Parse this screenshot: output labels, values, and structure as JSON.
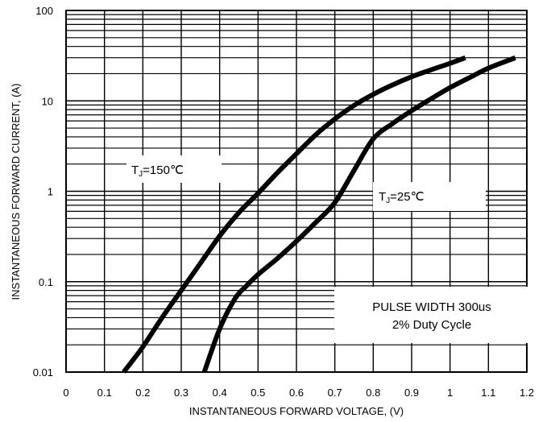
{
  "chart_data": {
    "type": "line",
    "xlabel": "INSTANTANEOUS FORWARD VOLTAGE, (V)",
    "ylabel": "INSTANTANEOUS FORWARD CURRENT, (A)",
    "xlim": [
      0,
      1.2
    ],
    "ylim": [
      0.01,
      100
    ],
    "y_scale": "log",
    "grid": true,
    "x_ticks": [
      "0",
      "0.1",
      "0.2",
      "0.3",
      "0.4",
      "0.5",
      "0.6",
      "0.7",
      "0.8",
      "0.9",
      "1",
      "1.1",
      "1.2"
    ],
    "y_ticks": [
      "0.01",
      "0.1",
      "1",
      "10",
      "100"
    ],
    "series": [
      {
        "name": "TJ=150°C",
        "x": [
          0.15,
          0.2,
          0.25,
          0.3,
          0.35,
          0.4,
          0.45,
          0.5,
          0.55,
          0.6,
          0.65,
          0.7,
          0.75,
          0.8,
          0.85,
          0.9,
          0.95,
          1.0,
          1.04
        ],
        "y": [
          0.01,
          0.019,
          0.04,
          0.08,
          0.16,
          0.32,
          0.58,
          0.95,
          1.6,
          2.6,
          4.2,
          6.3,
          8.9,
          11.8,
          15,
          18.5,
          22,
          26,
          30
        ]
      },
      {
        "name": "TJ=25°C",
        "x": [
          0.36,
          0.4,
          0.44,
          0.47,
          0.5,
          0.55,
          0.6,
          0.65,
          0.7,
          0.75,
          0.8,
          0.85,
          0.9,
          0.95,
          1.0,
          1.05,
          1.1,
          1.17
        ],
        "y": [
          0.01,
          0.03,
          0.065,
          0.09,
          0.12,
          0.18,
          0.28,
          0.45,
          0.75,
          1.7,
          3.8,
          5.6,
          7.8,
          10.5,
          14,
          18,
          23,
          30
        ]
      }
    ],
    "annotations": {
      "tj150": {
        "pre": "T",
        "sub": "J",
        "post": "=150℃"
      },
      "tj25": {
        "pre": "T",
        "sub": "J",
        "post": "=25℃"
      },
      "pulse_line1": "PULSE WIDTH 300us",
      "pulse_line2": "2% Duty Cycle"
    }
  }
}
